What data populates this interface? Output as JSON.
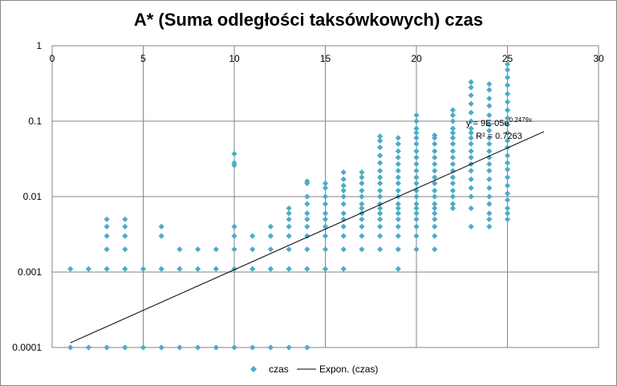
{
  "chart_data": {
    "type": "scatter",
    "title": "A* (Suma odległości taksówkowych) czas",
    "xlabel": "",
    "ylabel": "",
    "x_axis": {
      "min": 0,
      "max": 30,
      "ticks": [
        0,
        5,
        10,
        15,
        20,
        25,
        30
      ],
      "position": "top"
    },
    "y_axis": {
      "scale": "log",
      "min": 0.0001,
      "max": 1,
      "ticks": [
        0.0001,
        0.001,
        0.01,
        0.1,
        1
      ],
      "tick_labels": [
        "0.0001",
        "0.001",
        "0.01",
        "0.1",
        "1"
      ]
    },
    "grid": true,
    "legend_position": "bottom",
    "colors": {
      "points": "#4bacc6",
      "trendline": "#000000",
      "grid": "#868686"
    },
    "series": [
      {
        "name": "czas",
        "marker": "diamond",
        "points": [
          [
            1,
            0.0001
          ],
          [
            1,
            0.0011
          ],
          [
            2,
            0.0001
          ],
          [
            2,
            0.0011
          ],
          [
            3,
            0.0001
          ],
          [
            3,
            0.0011
          ],
          [
            3,
            0.002
          ],
          [
            3,
            0.003
          ],
          [
            3,
            0.004
          ],
          [
            3,
            0.005
          ],
          [
            4,
            0.0001
          ],
          [
            4,
            0.0011
          ],
          [
            4,
            0.002
          ],
          [
            4,
            0.003
          ],
          [
            4,
            0.004
          ],
          [
            4,
            0.005
          ],
          [
            5,
            0.0001
          ],
          [
            5,
            0.0011
          ],
          [
            6,
            0.0001
          ],
          [
            6,
            0.0011
          ],
          [
            6,
            0.003
          ],
          [
            6,
            0.004
          ],
          [
            7,
            0.0001
          ],
          [
            7,
            0.0011
          ],
          [
            7,
            0.002
          ],
          [
            8,
            0.0001
          ],
          [
            8,
            0.0011
          ],
          [
            8,
            0.002
          ],
          [
            9,
            0.0001
          ],
          [
            9,
            0.0011
          ],
          [
            9,
            0.002
          ],
          [
            10,
            0.0001
          ],
          [
            10,
            0.0011
          ],
          [
            10,
            0.002
          ],
          [
            10,
            0.003
          ],
          [
            10,
            0.004
          ],
          [
            10,
            0.026
          ],
          [
            10,
            0.028
          ],
          [
            10,
            0.037
          ],
          [
            11,
            0.0001
          ],
          [
            11,
            0.0011
          ],
          [
            11,
            0.002
          ],
          [
            11,
            0.003
          ],
          [
            12,
            0.0001
          ],
          [
            12,
            0.0011
          ],
          [
            12,
            0.002
          ],
          [
            12,
            0.003
          ],
          [
            12,
            0.004
          ],
          [
            13,
            0.0001
          ],
          [
            13,
            0.0011
          ],
          [
            13,
            0.002
          ],
          [
            13,
            0.003
          ],
          [
            13,
            0.004
          ],
          [
            13,
            0.005
          ],
          [
            13,
            0.006
          ],
          [
            13,
            0.007
          ],
          [
            14,
            0.0001
          ],
          [
            14,
            0.0011
          ],
          [
            14,
            0.002
          ],
          [
            14,
            0.003
          ],
          [
            14,
            0.004
          ],
          [
            14,
            0.005
          ],
          [
            14,
            0.006
          ],
          [
            14,
            0.008
          ],
          [
            14,
            0.01
          ],
          [
            14,
            0.015
          ],
          [
            14,
            0.016
          ],
          [
            15,
            0.0011
          ],
          [
            15,
            0.002
          ],
          [
            15,
            0.003
          ],
          [
            15,
            0.004
          ],
          [
            15,
            0.005
          ],
          [
            15,
            0.006
          ],
          [
            15,
            0.008
          ],
          [
            15,
            0.01
          ],
          [
            15,
            0.013
          ],
          [
            15,
            0.015
          ],
          [
            16,
            0.0011
          ],
          [
            16,
            0.002
          ],
          [
            16,
            0.003
          ],
          [
            16,
            0.004
          ],
          [
            16,
            0.005
          ],
          [
            16,
            0.006
          ],
          [
            16,
            0.008
          ],
          [
            16,
            0.01
          ],
          [
            16,
            0.012
          ],
          [
            16,
            0.014
          ],
          [
            16,
            0.017
          ],
          [
            16,
            0.021
          ],
          [
            17,
            0.002
          ],
          [
            17,
            0.003
          ],
          [
            17,
            0.004
          ],
          [
            17,
            0.005
          ],
          [
            17,
            0.006
          ],
          [
            17,
            0.007
          ],
          [
            17,
            0.008
          ],
          [
            17,
            0.01
          ],
          [
            17,
            0.012
          ],
          [
            17,
            0.015
          ],
          [
            17,
            0.018
          ],
          [
            17,
            0.021
          ],
          [
            18,
            0.002
          ],
          [
            18,
            0.003
          ],
          [
            18,
            0.004
          ],
          [
            18,
            0.005
          ],
          [
            18,
            0.006
          ],
          [
            18,
            0.007
          ],
          [
            18,
            0.008
          ],
          [
            18,
            0.01
          ],
          [
            18,
            0.012
          ],
          [
            18,
            0.015
          ],
          [
            18,
            0.018
          ],
          [
            18,
            0.022
          ],
          [
            18,
            0.028
          ],
          [
            18,
            0.035
          ],
          [
            18,
            0.045
          ],
          [
            18,
            0.055
          ],
          [
            18,
            0.063
          ],
          [
            19,
            0.0011
          ],
          [
            19,
            0.002
          ],
          [
            19,
            0.003
          ],
          [
            19,
            0.004
          ],
          [
            19,
            0.005
          ],
          [
            19,
            0.006
          ],
          [
            19,
            0.007
          ],
          [
            19,
            0.008
          ],
          [
            19,
            0.01
          ],
          [
            19,
            0.012
          ],
          [
            19,
            0.015
          ],
          [
            19,
            0.018
          ],
          [
            19,
            0.022
          ],
          [
            19,
            0.027
          ],
          [
            19,
            0.033
          ],
          [
            19,
            0.04
          ],
          [
            19,
            0.05
          ],
          [
            19,
            0.06
          ],
          [
            20,
            0.002
          ],
          [
            20,
            0.003
          ],
          [
            20,
            0.004
          ],
          [
            20,
            0.005
          ],
          [
            20,
            0.006
          ],
          [
            20,
            0.007
          ],
          [
            20,
            0.008
          ],
          [
            20,
            0.01
          ],
          [
            20,
            0.012
          ],
          [
            20,
            0.015
          ],
          [
            20,
            0.018
          ],
          [
            20,
            0.022
          ],
          [
            20,
            0.027
          ],
          [
            20,
            0.033
          ],
          [
            20,
            0.04
          ],
          [
            20,
            0.05
          ],
          [
            20,
            0.06
          ],
          [
            20,
            0.07
          ],
          [
            20,
            0.08
          ],
          [
            20,
            0.1
          ],
          [
            20,
            0.12
          ],
          [
            21,
            0.002
          ],
          [
            21,
            0.003
          ],
          [
            21,
            0.004
          ],
          [
            21,
            0.005
          ],
          [
            21,
            0.006
          ],
          [
            21,
            0.007
          ],
          [
            21,
            0.008
          ],
          [
            21,
            0.01
          ],
          [
            21,
            0.012
          ],
          [
            21,
            0.015
          ],
          [
            21,
            0.018
          ],
          [
            21,
            0.022
          ],
          [
            21,
            0.027
          ],
          [
            21,
            0.033
          ],
          [
            21,
            0.04
          ],
          [
            21,
            0.05
          ],
          [
            21,
            0.06
          ],
          [
            21,
            0.065
          ],
          [
            22,
            0.007
          ],
          [
            22,
            0.008
          ],
          [
            22,
            0.01
          ],
          [
            22,
            0.012
          ],
          [
            22,
            0.015
          ],
          [
            22,
            0.018
          ],
          [
            22,
            0.022
          ],
          [
            22,
            0.027
          ],
          [
            22,
            0.033
          ],
          [
            22,
            0.04
          ],
          [
            22,
            0.05
          ],
          [
            22,
            0.06
          ],
          [
            22,
            0.07
          ],
          [
            22,
            0.08
          ],
          [
            22,
            0.1
          ],
          [
            22,
            0.12
          ],
          [
            22,
            0.14
          ],
          [
            23,
            0.004
          ],
          [
            23,
            0.007
          ],
          [
            23,
            0.01
          ],
          [
            23,
            0.013
          ],
          [
            23,
            0.017
          ],
          [
            23,
            0.022
          ],
          [
            23,
            0.027
          ],
          [
            23,
            0.033
          ],
          [
            23,
            0.04
          ],
          [
            23,
            0.05
          ],
          [
            23,
            0.06
          ],
          [
            23,
            0.07
          ],
          [
            23,
            0.08
          ],
          [
            23,
            0.1
          ],
          [
            23,
            0.13
          ],
          [
            23,
            0.17
          ],
          [
            23,
            0.22
          ],
          [
            23,
            0.28
          ],
          [
            23,
            0.33
          ],
          [
            24,
            0.004
          ],
          [
            24,
            0.005
          ],
          [
            24,
            0.006
          ],
          [
            24,
            0.008
          ],
          [
            24,
            0.01
          ],
          [
            24,
            0.013
          ],
          [
            24,
            0.017
          ],
          [
            24,
            0.022
          ],
          [
            24,
            0.027
          ],
          [
            24,
            0.033
          ],
          [
            24,
            0.04
          ],
          [
            24,
            0.05
          ],
          [
            24,
            0.06
          ],
          [
            24,
            0.075
          ],
          [
            24,
            0.09
          ],
          [
            24,
            0.12
          ],
          [
            24,
            0.16
          ],
          [
            24,
            0.2
          ],
          [
            24,
            0.26
          ],
          [
            24,
            0.31
          ],
          [
            25,
            0.005
          ],
          [
            25,
            0.006
          ],
          [
            25,
            0.007
          ],
          [
            25,
            0.009
          ],
          [
            25,
            0.011
          ],
          [
            25,
            0.014
          ],
          [
            25,
            0.018
          ],
          [
            25,
            0.023
          ],
          [
            25,
            0.028
          ],
          [
            25,
            0.035
          ],
          [
            25,
            0.045
          ],
          [
            25,
            0.055
          ],
          [
            25,
            0.07
          ],
          [
            25,
            0.09
          ],
          [
            25,
            0.11
          ],
          [
            25,
            0.14
          ],
          [
            25,
            0.18
          ],
          [
            25,
            0.23
          ],
          [
            25,
            0.3
          ],
          [
            25,
            0.38
          ],
          [
            25,
            0.48
          ],
          [
            25,
            0.57
          ]
        ]
      },
      {
        "name": "Expon. (czas)",
        "type": "trendline",
        "fit": "exponential",
        "x_range": [
          1,
          27
        ],
        "equation": "y = 9E-05e",
        "equation_exponent": "0.2479x",
        "r_squared": "R² = 0.7263",
        "coefficient_a": 9e-05,
        "coefficient_b": 0.2479
      }
    ]
  }
}
